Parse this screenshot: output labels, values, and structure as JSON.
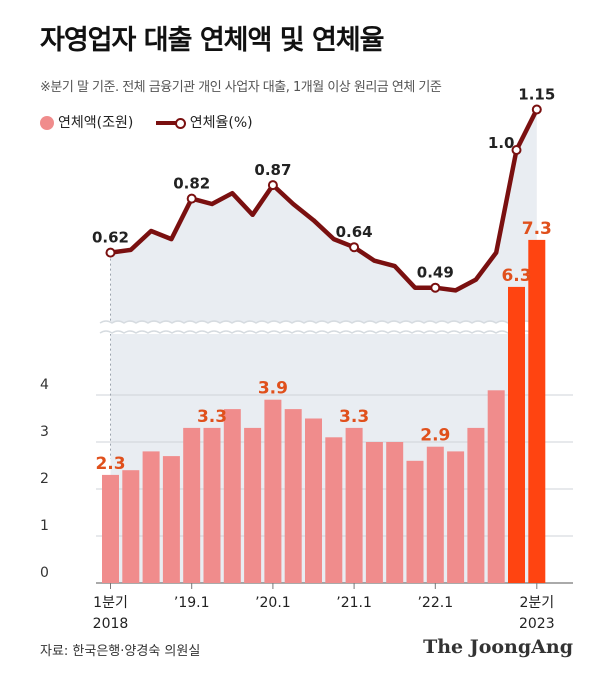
{
  "header": {
    "title": "자영업자 대출 연체액 및 연체율",
    "note": "※분기 말 기준. 전체 금융기관 개인 사업자 대출, 1개월 이상 원리금 연체 기준"
  },
  "legend": {
    "bar_label": "연체액(조원)",
    "line_label": "연체율(%)"
  },
  "footer": {
    "source": "자료: 한국은행·양경숙 의원실",
    "logo": "The JoongAng"
  },
  "colors": {
    "bar": "#f08c8c",
    "bar_highlight": "#ff4411",
    "line": "#7a1010",
    "label_orange": "#e0501c",
    "shade": "#e9edf2"
  },
  "chart_data": {
    "type": "bar",
    "quarters": [
      "2018Q1",
      "2018Q2",
      "2018Q3",
      "2018Q4",
      "2019Q1",
      "2019Q2",
      "2019Q3",
      "2019Q4",
      "2020Q1",
      "2020Q2",
      "2020Q3",
      "2020Q4",
      "2021Q1",
      "2021Q2",
      "2021Q3",
      "2021Q4",
      "2022Q1",
      "2022Q2",
      "2022Q3",
      "2022Q4",
      "2023Q1",
      "2023Q2"
    ],
    "x_tick_labels": [
      {
        "index": 0,
        "lines": [
          "1분기",
          "2018"
        ]
      },
      {
        "index": 4,
        "lines": [
          "’19.1"
        ]
      },
      {
        "index": 8,
        "lines": [
          "’20.1"
        ]
      },
      {
        "index": 12,
        "lines": [
          "’21.1"
        ]
      },
      {
        "index": 16,
        "lines": [
          "’22.1"
        ]
      },
      {
        "index": 21,
        "lines": [
          "2분기",
          "2023"
        ]
      }
    ],
    "y_ticks": [
      "0",
      "1",
      "2",
      "3",
      "4"
    ],
    "y_range": [
      0,
      4.6
    ],
    "series": [
      {
        "name": "연체액(조원)",
        "kind": "bar",
        "values": [
          2.3,
          2.4,
          2.8,
          2.7,
          3.3,
          3.3,
          3.7,
          3.3,
          3.9,
          3.7,
          3.5,
          3.1,
          3.3,
          3.0,
          3.0,
          2.6,
          2.9,
          2.8,
          3.3,
          4.1,
          6.3,
          7.3
        ],
        "labels": [
          {
            "index": 0,
            "text": "2.3"
          },
          {
            "index": 5,
            "text": "3.3"
          },
          {
            "index": 8,
            "text": "3.9"
          },
          {
            "index": 12,
            "text": "3.3"
          },
          {
            "index": 16,
            "text": "2.9"
          },
          {
            "index": 20,
            "text": "6.3"
          },
          {
            "index": 21,
            "text": "7.3"
          }
        ]
      },
      {
        "name": "연체율(%)",
        "kind": "line",
        "values": [
          0.62,
          0.63,
          0.7,
          0.67,
          0.82,
          0.8,
          0.84,
          0.76,
          0.87,
          0.8,
          0.74,
          0.67,
          0.64,
          0.59,
          0.57,
          0.49,
          0.49,
          0.48,
          0.52,
          0.62,
          1.0,
          1.15
        ],
        "labels": [
          {
            "index": 0,
            "text": "0.62"
          },
          {
            "index": 4,
            "text": "0.82"
          },
          {
            "index": 8,
            "text": "0.87"
          },
          {
            "index": 12,
            "text": "0.64"
          },
          {
            "index": 16,
            "text": "0.49"
          },
          {
            "index": 20,
            "text": "1.0"
          },
          {
            "index": 21,
            "text": "1.15"
          }
        ],
        "markers": [
          0,
          4,
          8,
          12,
          16,
          20,
          21
        ]
      }
    ],
    "axis_break": true,
    "grid": true
  }
}
